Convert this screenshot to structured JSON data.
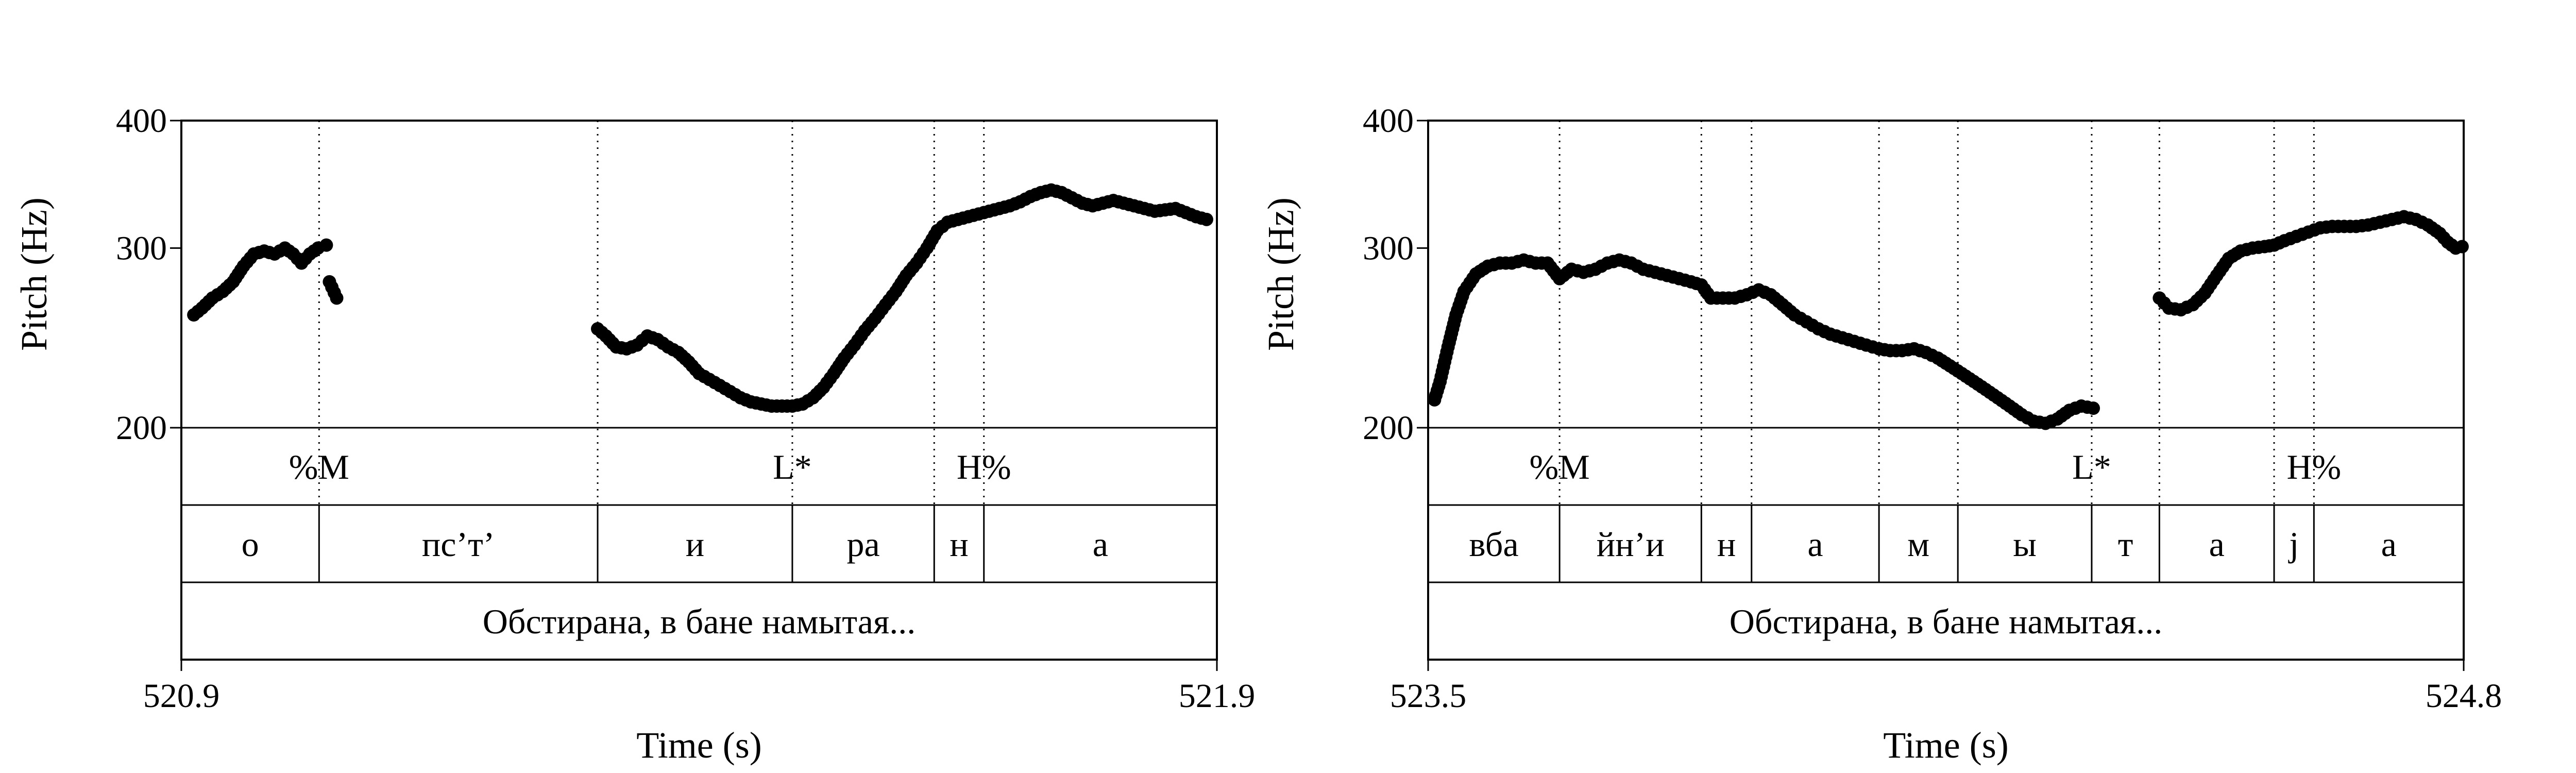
{
  "chart_data": [
    {
      "type": "scatter",
      "ylabel": "Pitch (Hz)",
      "xlabel": "Time (s)",
      "y_log_scale": true,
      "ylim": [
        200,
        400
      ],
      "xlim": [
        520.9,
        521.9
      ],
      "x_tick_labels": [
        "520.9",
        "521.9"
      ],
      "y_ticks": [
        200,
        300,
        400
      ],
      "y_tick_labels": [
        "200",
        "300",
        "400"
      ],
      "tones": [
        {
          "t": 521.033,
          "label": "%M"
        },
        {
          "t": 521.49,
          "label": "L*"
        },
        {
          "t": 521.675,
          "label": "H%"
        }
      ],
      "tone_guides": [
        521.033,
        521.302,
        521.49,
        521.627,
        521.675
      ],
      "segments": [
        {
          "start": 520.9,
          "end": 521.033,
          "label": "о"
        },
        {
          "start": 521.033,
          "end": 521.302,
          "label": "пс’т’"
        },
        {
          "start": 521.302,
          "end": 521.49,
          "label": "и"
        },
        {
          "start": 521.49,
          "end": 521.627,
          "label": "ра"
        },
        {
          "start": 521.627,
          "end": 521.675,
          "label": "н"
        },
        {
          "start": 521.675,
          "end": 521.9,
          "label": "а"
        }
      ],
      "phrase": "Обстирана, в бане намытая...",
      "pitch_runs": [
        [
          [
            520.912,
            258
          ],
          [
            520.92,
            262
          ],
          [
            520.93,
            268
          ],
          [
            520.94,
            272
          ],
          [
            520.95,
            278
          ],
          [
            520.96,
            288
          ],
          [
            520.97,
            296
          ],
          [
            520.98,
            298
          ],
          [
            520.99,
            296
          ],
          [
            521.0,
            300
          ],
          [
            521.008,
            296
          ],
          [
            521.016,
            290
          ],
          [
            521.024,
            296
          ],
          [
            521.032,
            300
          ],
          [
            521.04,
            302
          ]
        ],
        [
          [
            521.043,
            278
          ],
          [
            521.05,
            268
          ]
        ],
        [
          [
            521.302,
            250
          ],
          [
            521.31,
            246
          ],
          [
            521.32,
            240
          ],
          [
            521.33,
            239
          ],
          [
            521.34,
            241
          ],
          [
            521.35,
            246
          ],
          [
            521.36,
            244
          ],
          [
            521.37,
            240
          ],
          [
            521.38,
            237
          ],
          [
            521.39,
            232
          ],
          [
            521.4,
            226
          ],
          [
            521.41,
            223
          ],
          [
            521.42,
            220
          ],
          [
            521.43,
            217
          ],
          [
            521.44,
            214
          ],
          [
            521.45,
            212
          ],
          [
            521.46,
            211
          ],
          [
            521.47,
            210
          ],
          [
            521.48,
            210
          ],
          [
            521.49,
            210
          ],
          [
            521.5,
            211
          ],
          [
            521.51,
            214
          ],
          [
            521.52,
            219
          ],
          [
            521.53,
            226
          ],
          [
            521.54,
            234
          ],
          [
            521.55,
            241
          ],
          [
            521.56,
            249
          ],
          [
            521.57,
            256
          ],
          [
            521.58,
            264
          ],
          [
            521.59,
            272
          ],
          [
            521.6,
            282
          ],
          [
            521.61,
            290
          ],
          [
            521.62,
            300
          ],
          [
            521.63,
            312
          ],
          [
            521.64,
            318
          ],
          [
            521.65,
            320
          ],
          [
            521.66,
            322
          ],
          [
            521.67,
            324
          ],
          [
            521.68,
            326
          ],
          [
            521.69,
            328
          ],
          [
            521.7,
            330
          ],
          [
            521.71,
            333
          ],
          [
            521.72,
            337
          ],
          [
            521.73,
            340
          ],
          [
            521.74,
            342
          ],
          [
            521.75,
            340
          ],
          [
            521.76,
            336
          ],
          [
            521.77,
            332
          ],
          [
            521.78,
            330
          ],
          [
            521.79,
            332
          ],
          [
            521.8,
            334
          ],
          [
            521.81,
            332
          ],
          [
            521.82,
            330
          ],
          [
            521.83,
            328
          ],
          [
            521.84,
            326
          ],
          [
            521.85,
            327
          ],
          [
            521.86,
            328
          ],
          [
            521.87,
            325
          ],
          [
            521.88,
            322
          ],
          [
            521.89,
            320
          ]
        ]
      ]
    },
    {
      "type": "scatter",
      "ylabel": "Pitch (Hz)",
      "xlabel": "Time (s)",
      "y_log_scale": true,
      "ylim": [
        200,
        400
      ],
      "xlim": [
        523.5,
        524.8
      ],
      "x_tick_labels": [
        "523.5",
        "524.8"
      ],
      "y_ticks": [
        200,
        300,
        400
      ],
      "y_tick_labels": [
        "200",
        "300",
        "400"
      ],
      "tones": [
        {
          "t": 523.665,
          "label": "%M"
        },
        {
          "t": 524.333,
          "label": "L*"
        },
        {
          "t": 524.612,
          "label": "H%"
        }
      ],
      "tone_guides": [
        523.665,
        523.843,
        523.906,
        524.066,
        524.165,
        524.333,
        524.418,
        524.562,
        524.612
      ],
      "segments": [
        {
          "start": 523.5,
          "end": 523.665,
          "label": "вба"
        },
        {
          "start": 523.665,
          "end": 523.843,
          "label": "йн’и"
        },
        {
          "start": 523.843,
          "end": 523.906,
          "label": "н"
        },
        {
          "start": 523.906,
          "end": 524.066,
          "label": "а"
        },
        {
          "start": 524.066,
          "end": 524.165,
          "label": "м"
        },
        {
          "start": 524.165,
          "end": 524.333,
          "label": "ы"
        },
        {
          "start": 524.333,
          "end": 524.418,
          "label": "т"
        },
        {
          "start": 524.418,
          "end": 524.562,
          "label": "а"
        },
        {
          "start": 524.562,
          "end": 524.612,
          "label": "j"
        },
        {
          "start": 524.612,
          "end": 524.8,
          "label": "а"
        }
      ],
      "phrase": "Обстирана, в бане намытая...",
      "pitch_runs": [
        [
          [
            523.508,
            213
          ],
          [
            523.515,
            222
          ],
          [
            523.525,
            240
          ],
          [
            523.535,
            258
          ],
          [
            523.545,
            272
          ],
          [
            523.56,
            283
          ],
          [
            523.575,
            288
          ],
          [
            523.59,
            290
          ],
          [
            523.605,
            290
          ],
          [
            523.62,
            292
          ],
          [
            523.635,
            290
          ],
          [
            523.65,
            290
          ],
          [
            523.665,
            280
          ],
          [
            523.68,
            286
          ],
          [
            523.695,
            284
          ],
          [
            523.71,
            286
          ],
          [
            523.725,
            290
          ],
          [
            523.74,
            292
          ],
          [
            523.755,
            290
          ],
          [
            523.77,
            286
          ],
          [
            523.785,
            284
          ],
          [
            523.8,
            282
          ],
          [
            523.815,
            280
          ],
          [
            523.83,
            278
          ],
          [
            523.843,
            276
          ],
          [
            523.855,
            268
          ],
          [
            523.87,
            268
          ],
          [
            523.885,
            268
          ],
          [
            523.9,
            270
          ],
          [
            523.915,
            273
          ],
          [
            523.93,
            270
          ],
          [
            523.945,
            264
          ],
          [
            523.96,
            258
          ],
          [
            523.975,
            254
          ],
          [
            523.99,
            250
          ],
          [
            524.005,
            247
          ],
          [
            524.02,
            245
          ],
          [
            524.035,
            243
          ],
          [
            524.05,
            241
          ],
          [
            524.066,
            239
          ],
          [
            524.08,
            238
          ],
          [
            524.095,
            238
          ],
          [
            524.11,
            239
          ],
          [
            524.125,
            237
          ],
          [
            524.14,
            234
          ],
          [
            524.155,
            230
          ],
          [
            524.17,
            226
          ],
          [
            524.185,
            222
          ],
          [
            524.2,
            218
          ],
          [
            524.215,
            214
          ],
          [
            524.23,
            210
          ],
          [
            524.245,
            206
          ],
          [
            524.26,
            203
          ],
          [
            524.275,
            202
          ],
          [
            524.29,
            204
          ],
          [
            524.305,
            208
          ],
          [
            524.32,
            210
          ],
          [
            524.335,
            209
          ]
        ],
        [
          [
            524.418,
            268
          ],
          [
            524.43,
            262
          ],
          [
            524.445,
            261
          ],
          [
            524.46,
            264
          ],
          [
            524.475,
            271
          ],
          [
            524.49,
            282
          ],
          [
            524.505,
            293
          ],
          [
            524.52,
            298
          ],
          [
            524.535,
            300
          ],
          [
            524.55,
            301
          ],
          [
            524.562,
            302
          ],
          [
            524.575,
            305
          ],
          [
            524.59,
            308
          ],
          [
            524.605,
            311
          ],
          [
            524.62,
            314
          ],
          [
            524.635,
            315
          ],
          [
            524.65,
            315
          ],
          [
            524.665,
            315
          ],
          [
            524.68,
            316
          ],
          [
            524.695,
            318
          ],
          [
            524.71,
            320
          ],
          [
            524.725,
            322
          ],
          [
            524.74,
            320
          ],
          [
            524.755,
            316
          ],
          [
            524.77,
            310
          ],
          [
            524.78,
            304
          ],
          [
            524.79,
            300
          ],
          [
            524.798,
            301
          ]
        ]
      ]
    }
  ]
}
